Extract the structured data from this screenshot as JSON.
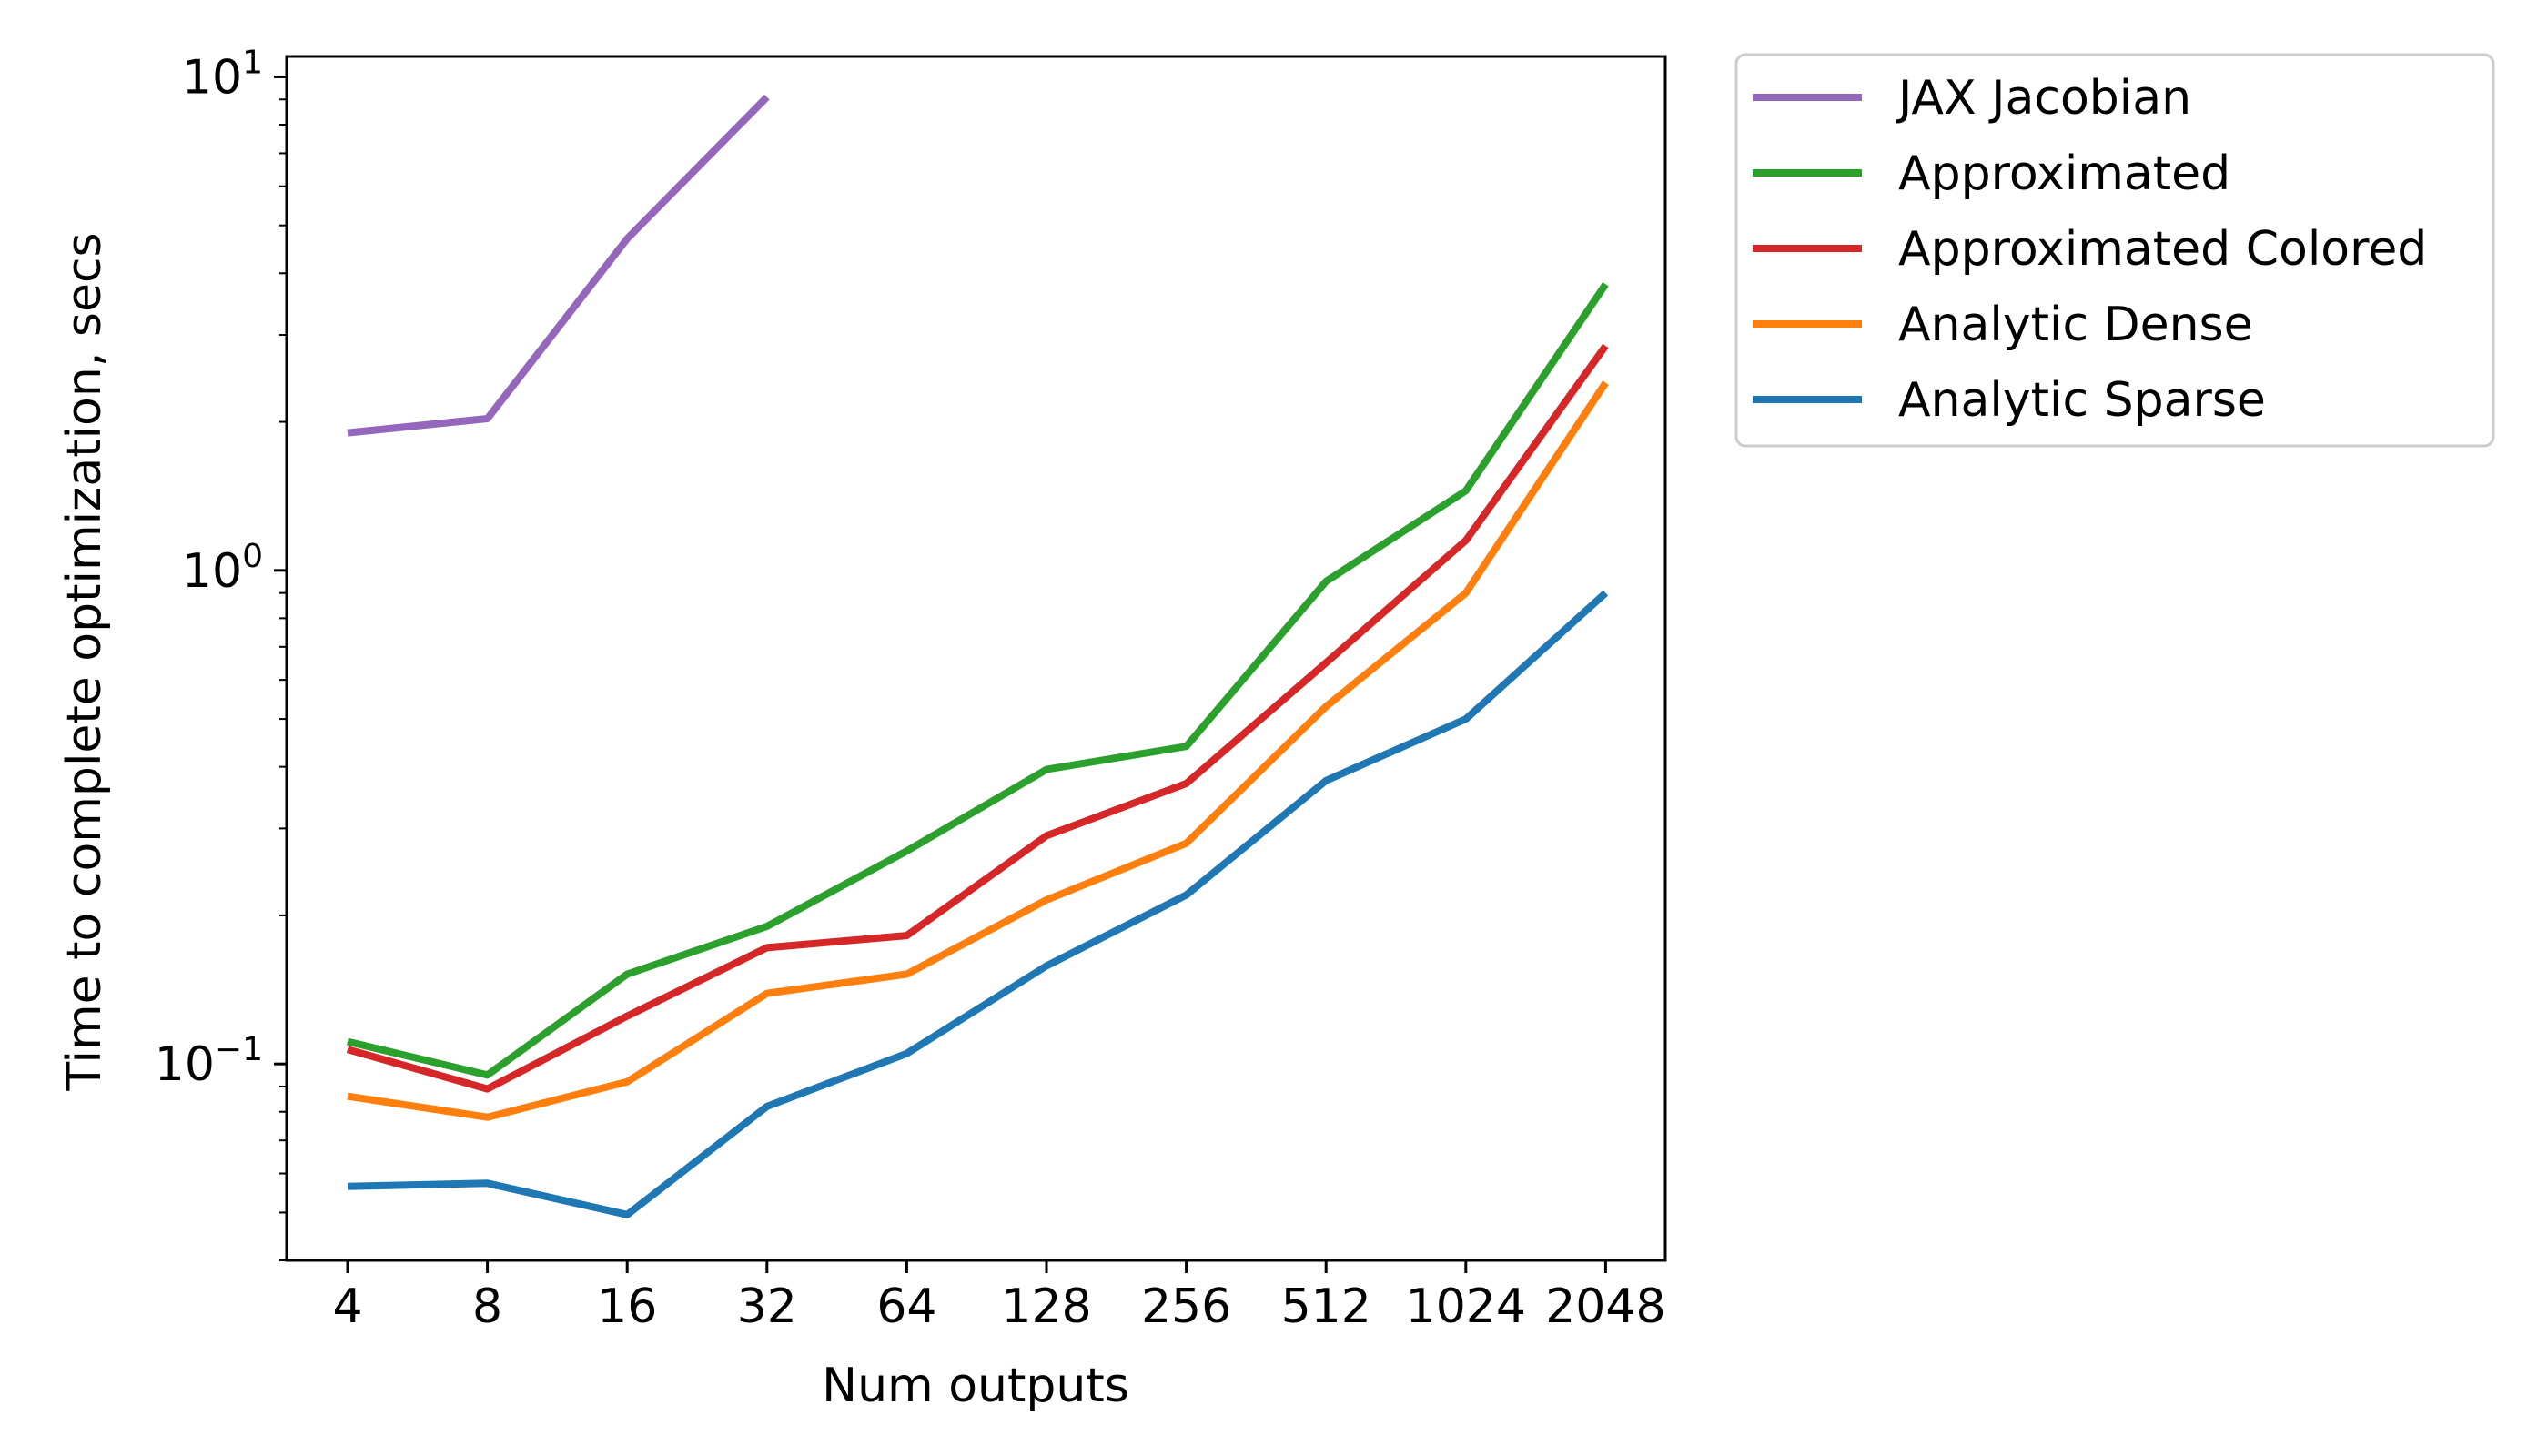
{
  "chart_data": {
    "type": "line",
    "title": "",
    "xlabel": "Num outputs",
    "ylabel": "Time to complete optimization, secs",
    "yscale": "log",
    "ylim": [
      0.04,
      11
    ],
    "categories": [
      "4",
      "8",
      "16",
      "32",
      "64",
      "128",
      "256",
      "512",
      "1024",
      "2048"
    ],
    "y_ticks": [
      {
        "value": 0.1,
        "base": "10",
        "exp": "−1"
      },
      {
        "value": 1,
        "base": "10",
        "exp": "0"
      },
      {
        "value": 10,
        "base": "10",
        "exp": "1"
      }
    ],
    "legend_position": "outside-top-right",
    "series": [
      {
        "name": "JAX Jacobian",
        "color": "#9467bd",
        "values": [
          1.9,
          2.03,
          4.7,
          9.1,
          null,
          null,
          null,
          null,
          null,
          null
        ]
      },
      {
        "name": "Approximated",
        "color": "#2ca02c",
        "values": [
          0.111,
          0.095,
          0.152,
          0.19,
          0.27,
          0.395,
          0.44,
          0.95,
          1.45,
          3.8
        ]
      },
      {
        "name": "Approximated Colored",
        "color": "#d62728",
        "values": [
          0.107,
          0.089,
          0.125,
          0.172,
          0.182,
          0.29,
          0.37,
          0.65,
          1.15,
          2.85
        ]
      },
      {
        "name": "Analytic Dense",
        "color": "#ff7f0e",
        "values": [
          0.086,
          0.078,
          0.092,
          0.139,
          0.152,
          0.215,
          0.28,
          0.53,
          0.9,
          2.4
        ]
      },
      {
        "name": "Analytic Sparse",
        "color": "#1f77b4",
        "values": [
          0.0565,
          0.0573,
          0.0495,
          0.082,
          0.105,
          0.158,
          0.22,
          0.375,
          0.5,
          0.9
        ]
      }
    ]
  }
}
